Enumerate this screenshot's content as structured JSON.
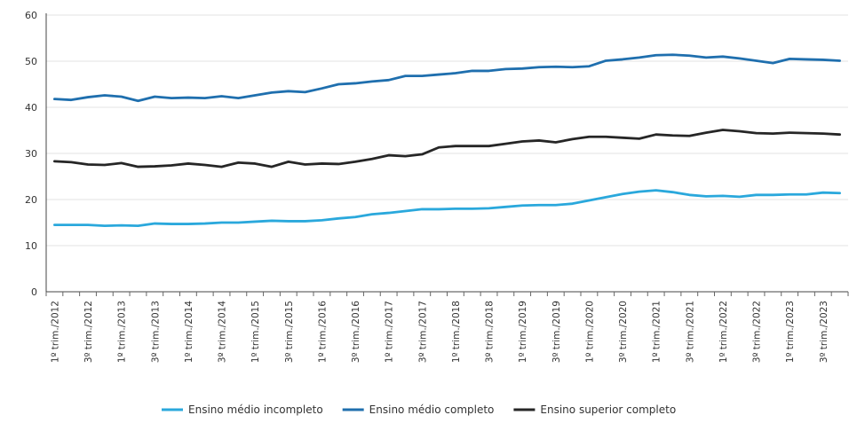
{
  "chart_data": {
    "type": "line",
    "title": "",
    "xlabel": "",
    "ylabel": "",
    "ylim": [
      0,
      60
    ],
    "yticks": [
      0,
      10,
      20,
      30,
      40,
      50,
      60
    ],
    "grid": true,
    "legend": "bottom",
    "x": [
      "1º trim./2012",
      "2º trim./2012",
      "3º trim./2012",
      "4º trim./2012",
      "1º trim./2013",
      "2º trim./2013",
      "3º trim./2013",
      "4º trim./2013",
      "1º trim./2014",
      "2º trim./2014",
      "3º trim./2014",
      "4º trim./2014",
      "1º trim./2015",
      "2º trim./2015",
      "3º trim./2015",
      "4º trim./2015",
      "1º trim./2016",
      "2º trim./2016",
      "3º trim./2016",
      "4º trim./2016",
      "1º trim./2017",
      "2º trim./2017",
      "3º trim./2017",
      "4º trim./2017",
      "1º trim./2018",
      "2º trim./2018",
      "3º trim./2018",
      "4º trim./2018",
      "1º trim./2019",
      "2º trim./2019",
      "3º trim./2019",
      "4º trim./2019",
      "1º trim./2020",
      "2º trim./2020",
      "3º trim./2020",
      "4º trim./2020",
      "1º trim./2021",
      "2º trim./2021",
      "3º trim./2021",
      "4º trim./2021",
      "1º trim./2022",
      "2º trim./2022",
      "3º trim./2022",
      "4º trim./2022",
      "1º trim./2023",
      "2º trim./2023",
      "3º trim./2023",
      "4º trim./2023"
    ],
    "x_tick_labels": [
      "1º trim./2012",
      "3º trim./2012",
      "1º trim./2013",
      "3º trim./2013",
      "1º trim./2014",
      "3º trim./2014",
      "1º trim./2015",
      "3º trim./2015",
      "1º trim./2016",
      "3º trim./2016",
      "1º trim./2017",
      "3º trim./2017",
      "1º trim./2018",
      "3º trim./2018",
      "1º trim./2019",
      "3º trim./2019",
      "1º trim./2020",
      "3º trim./2020",
      "1º trim./2021",
      "3º trim./2021",
      "1º trim./2022",
      "3º trim./2022",
      "1º trim./2023",
      "3º trim./2023"
    ],
    "series": [
      {
        "name": "Ensino médio incompleto",
        "color": "#2aa8dc",
        "values": [
          14.5,
          14.5,
          14.5,
          14.3,
          14.4,
          14.3,
          14.8,
          14.7,
          14.7,
          14.8,
          15.0,
          15.0,
          15.2,
          15.4,
          15.3,
          15.3,
          15.5,
          15.9,
          16.2,
          16.8,
          17.1,
          17.5,
          17.9,
          17.9,
          18.0,
          18.0,
          18.1,
          18.4,
          18.7,
          18.8,
          18.8,
          19.1,
          19.8,
          20.5,
          21.2,
          21.7,
          22.0,
          21.6,
          21.0,
          20.7,
          20.8,
          20.6,
          21.0,
          21.0,
          21.1,
          21.1,
          21.5,
          21.4
        ]
      },
      {
        "name": "Ensino médio completo",
        "color": "#1f6fae",
        "values": [
          41.8,
          41.6,
          42.2,
          42.6,
          42.3,
          41.4,
          42.3,
          42.0,
          42.1,
          42.0,
          42.4,
          42.0,
          42.6,
          43.2,
          43.5,
          43.3,
          44.1,
          45.0,
          45.2,
          45.6,
          45.9,
          46.8,
          46.8,
          47.1,
          47.4,
          47.9,
          47.9,
          48.3,
          48.4,
          48.7,
          48.8,
          48.7,
          48.9,
          50.1,
          50.4,
          50.8,
          51.3,
          51.4,
          51.2,
          50.8,
          51.0,
          50.6,
          50.1,
          49.6,
          50.5,
          50.4,
          50.3,
          50.1
        ]
      },
      {
        "name": "Ensino superior completo",
        "color": "#262626",
        "values": [
          28.3,
          28.1,
          27.6,
          27.5,
          27.9,
          27.1,
          27.2,
          27.4,
          27.8,
          27.5,
          27.1,
          28.0,
          27.8,
          27.1,
          28.2,
          27.6,
          27.8,
          27.7,
          28.2,
          28.8,
          29.6,
          29.4,
          29.8,
          31.3,
          31.6,
          31.6,
          31.6,
          32.1,
          32.6,
          32.8,
          32.4,
          33.1,
          33.6,
          33.6,
          33.4,
          33.2,
          34.1,
          33.9,
          33.8,
          34.5,
          35.1,
          34.8,
          34.4,
          34.3,
          34.5,
          34.4,
          34.3,
          34.1
        ]
      }
    ]
  }
}
